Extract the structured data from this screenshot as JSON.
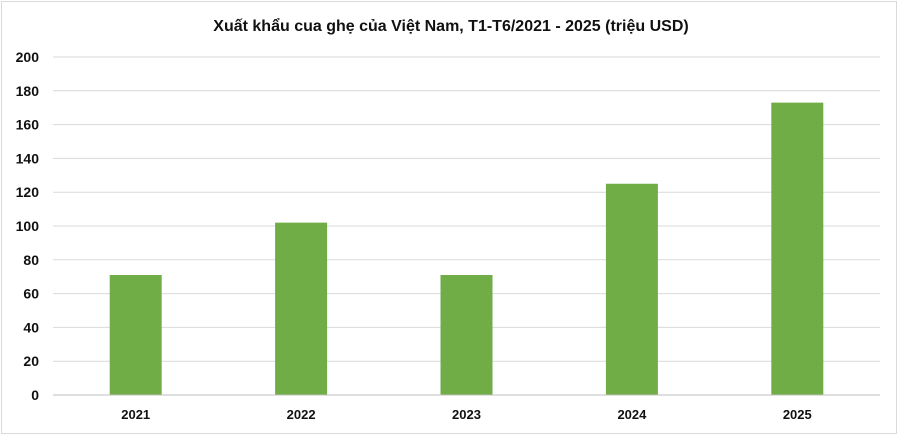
{
  "chart_data": {
    "type": "bar",
    "title": "Xuất khẩu cua ghẹ của Việt Nam, T1-T6/2021 - 2025 (triệu USD)",
    "categories": [
      "2021",
      "2022",
      "2023",
      "2024",
      "2025"
    ],
    "values": [
      71,
      102,
      71,
      125,
      173
    ],
    "ylim": [
      0,
      200
    ],
    "yticks": [
      0,
      20,
      40,
      60,
      80,
      100,
      120,
      140,
      160,
      180,
      200
    ],
    "grid": true,
    "legend": "none",
    "colors": {
      "bar": "#70ad47",
      "grid": "#d9d9d9",
      "axis": "#bfbfbf",
      "text": "#111111"
    }
  }
}
